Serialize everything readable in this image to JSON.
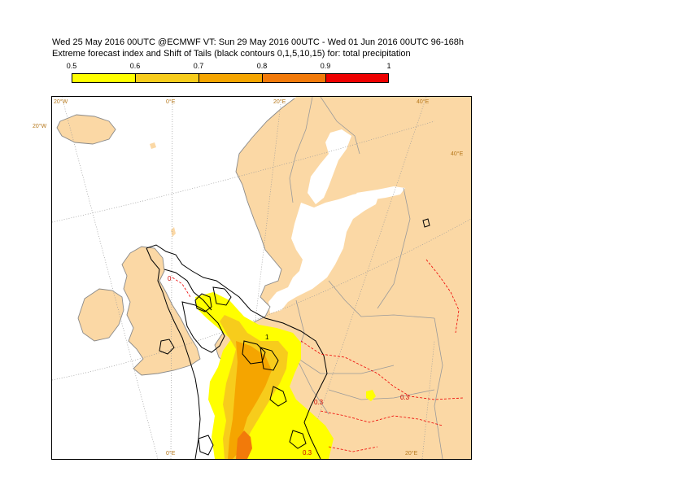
{
  "header": {
    "line1": "Wed 25 May 2016 00UTC @ECMWF VT: Sun 29 May 2016 00UTC - Wed 01 Jun 2016 00UTC  96-168h",
    "line2": "Extreme forecast index and Shift of Tails (black contours 0,1,5,10,15) for: total precipitation"
  },
  "legend": {
    "labels": [
      "0.5",
      "0.6",
      "0.7",
      "0.8",
      "0.9",
      "1"
    ],
    "colors": [
      "#ffff00",
      "#f7cc1c",
      "#f5a500",
      "#f27a0a",
      "#ee0000"
    ]
  },
  "map": {
    "land_color": "#fbd8a5",
    "sea_color": "#ffffff",
    "coast_color": "#8a8a8a",
    "border_color": "#9a9a9a",
    "grid_color": "#9a9a9a",
    "grid_labels": {
      "w20_top": "20°W",
      "e0_top": "0°E",
      "e20_top": "20°E",
      "e40_top": "40°E",
      "w20_left": "20°W",
      "e40_right": "40°E",
      "e0_bottom": "0°E",
      "e20_bottom": "20°E"
    },
    "contour_labels": {
      "sot_a": "1",
      "sot_b": "0",
      "efi_a": "0.3",
      "efi_b": "0.3",
      "efi_c": "0.3"
    },
    "efi_fill_colors": [
      "#ffff00",
      "#f7cc1c",
      "#f5a500",
      "#f27a0a"
    ],
    "sot_color": "#000000",
    "efi_neg_color": "#ee0000"
  }
}
